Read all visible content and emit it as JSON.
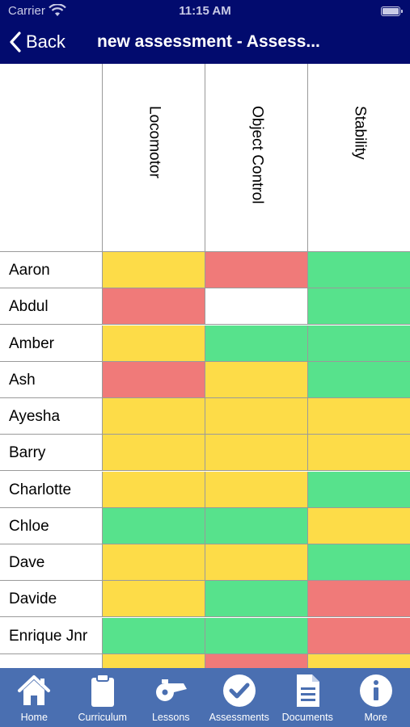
{
  "status_bar": {
    "carrier": "Carrier",
    "time": "11:15 AM"
  },
  "nav": {
    "back_label": "Back",
    "title": "new assessment - Assess..."
  },
  "colors": {
    "yellow": "#fddc48",
    "red": "#f07a79",
    "green": "#57e28c",
    "white": "#ffffff",
    "nav_bg": "#020b6e",
    "tab_bg": "#4a6fb1"
  },
  "columns": [
    "Locomotor",
    "Object Control",
    "Stability"
  ],
  "rows": [
    {
      "name": "Aaron",
      "cells": [
        "yellow",
        "red",
        "green"
      ]
    },
    {
      "name": "Abdul",
      "cells": [
        "red",
        "white",
        "green"
      ]
    },
    {
      "name": "Amber",
      "cells": [
        "yellow",
        "green",
        "green"
      ]
    },
    {
      "name": "Ash",
      "cells": [
        "red",
        "yellow",
        "green"
      ]
    },
    {
      "name": "Ayesha",
      "cells": [
        "yellow",
        "yellow",
        "yellow"
      ]
    },
    {
      "name": "Barry",
      "cells": [
        "yellow",
        "yellow",
        "yellow"
      ]
    },
    {
      "name": "Charlotte",
      "cells": [
        "yellow",
        "yellow",
        "green"
      ]
    },
    {
      "name": "Chloe",
      "cells": [
        "green",
        "green",
        "yellow"
      ]
    },
    {
      "name": "Dave",
      "cells": [
        "yellow",
        "yellow",
        "green"
      ]
    },
    {
      "name": "Davide",
      "cells": [
        "yellow",
        "green",
        "red"
      ]
    },
    {
      "name": "Enrique Jnr",
      "cells": [
        "green",
        "green",
        "red"
      ]
    },
    {
      "name": "",
      "cells": [
        "yellow",
        "red",
        "yellow"
      ]
    }
  ],
  "tabs": [
    {
      "label": "Home",
      "icon": "home-icon"
    },
    {
      "label": "Curriculum",
      "icon": "clipboard-icon"
    },
    {
      "label": "Lessons",
      "icon": "whistle-icon"
    },
    {
      "label": "Assessments",
      "icon": "check-circle-icon"
    },
    {
      "label": "Documents",
      "icon": "document-icon"
    },
    {
      "label": "More",
      "icon": "info-icon"
    }
  ]
}
